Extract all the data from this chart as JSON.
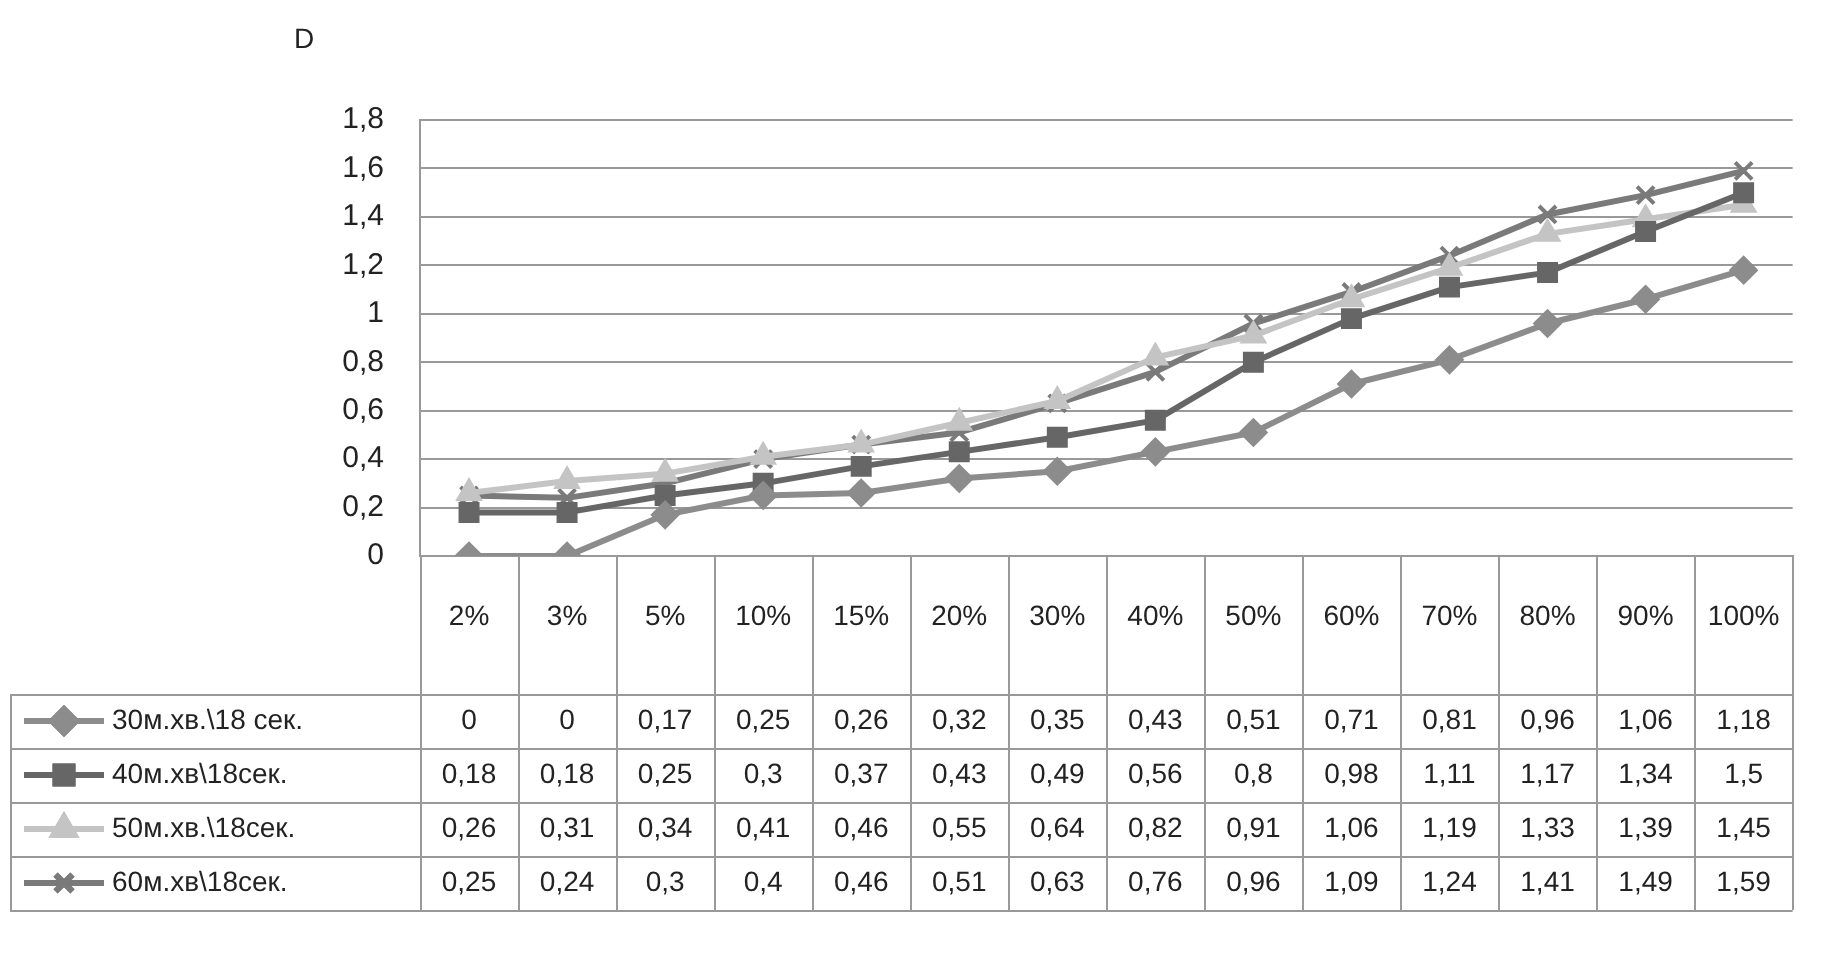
{
  "chart_data": {
    "type": "line",
    "ylabel": "D",
    "categories": [
      "2%",
      "3%",
      "5%",
      "10%",
      "15%",
      "20%",
      "30%",
      "40%",
      "50%",
      "60%",
      "70%",
      "80%",
      "90%",
      "100%"
    ],
    "series": [
      {
        "name": "30м.хв.\\18 сек.",
        "color": "#8c8c8c",
        "marker": "diamond",
        "values": [
          0,
          0,
          0.17,
          0.25,
          0.26,
          0.32,
          0.35,
          0.43,
          0.51,
          0.71,
          0.81,
          0.96,
          1.06,
          1.18
        ],
        "value_labels": [
          "0",
          "0",
          "0,17",
          "0,25",
          "0,26",
          "0,32",
          "0,35",
          "0,43",
          "0,51",
          "0,71",
          "0,81",
          "0,96",
          "1,06",
          "1,18"
        ]
      },
      {
        "name": "40м.хв\\18сек.",
        "color": "#666666",
        "marker": "square",
        "values": [
          0.18,
          0.18,
          0.25,
          0.3,
          0.37,
          0.43,
          0.49,
          0.56,
          0.8,
          0.98,
          1.11,
          1.17,
          1.34,
          1.5
        ],
        "value_labels": [
          "0,18",
          "0,18",
          "0,25",
          "0,3",
          "0,37",
          "0,43",
          "0,49",
          "0,56",
          "0,8",
          "0,98",
          "1,11",
          "1,17",
          "1,34",
          "1,5"
        ]
      },
      {
        "name": "50м.хв.\\18сек.",
        "color": "#c4c4c4",
        "marker": "triangle",
        "values": [
          0.26,
          0.31,
          0.34,
          0.41,
          0.46,
          0.55,
          0.64,
          0.82,
          0.91,
          1.06,
          1.19,
          1.33,
          1.39,
          1.45
        ],
        "value_labels": [
          "0,26",
          "0,31",
          "0,34",
          "0,41",
          "0,46",
          "0,55",
          "0,64",
          "0,82",
          "0,91",
          "1,06",
          "1,19",
          "1,33",
          "1,39",
          "1,45"
        ]
      },
      {
        "name": "60м.хв\\18сек.",
        "color": "#7a7a7a",
        "marker": "cross",
        "values": [
          0.25,
          0.24,
          0.3,
          0.4,
          0.46,
          0.51,
          0.63,
          0.76,
          0.96,
          1.09,
          1.24,
          1.41,
          1.49,
          1.59
        ],
        "value_labels": [
          "0,25",
          "0,24",
          "0,3",
          "0,4",
          "0,46",
          "0,51",
          "0,63",
          "0,76",
          "0,96",
          "1,09",
          "1,24",
          "1,41",
          "1,49",
          "1,59"
        ]
      }
    ],
    "ylim": [
      0,
      1.8
    ],
    "yticks": [
      0,
      {
        "value": 0.2,
        "label": "0,2"
      },
      {
        "value": 0.4,
        "label": "0,4"
      },
      {
        "value": 0.6,
        "label": "0,6"
      },
      {
        "value": 0.8,
        "label": "0,8"
      },
      1,
      {
        "value": 1.2,
        "label": "1,2"
      },
      {
        "value": 1.4,
        "label": "1,4"
      },
      {
        "value": 1.6,
        "label": "1,6"
      },
      {
        "value": 1.8,
        "label": "1,8"
      }
    ],
    "grid": "y",
    "legend": "bottom",
    "line_style": "solid"
  }
}
